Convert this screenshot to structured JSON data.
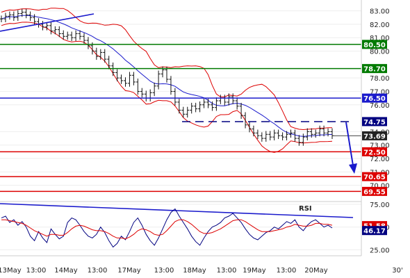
{
  "chart_data": [
    {
      "type": "line",
      "panel": "price",
      "ylim": [
        69.0,
        83.6
      ],
      "y_ticks": [
        "83.00",
        "82.00",
        "81.00",
        "80.00",
        "78.00",
        "77.00",
        "76.00",
        "74.00",
        "73.00",
        "72.00",
        "71.00",
        "70.00"
      ],
      "series": [
        {
          "kind": "ohlc-close",
          "values": [
            82.4,
            82.6,
            82.7,
            82.5,
            82.8,
            82.9,
            82.7,
            82.5,
            82.2,
            82.0,
            81.8,
            81.9,
            81.5,
            81.6,
            81.3,
            81.1,
            81.2,
            81.0,
            81.3,
            81.1,
            80.8,
            80.4,
            80.0,
            79.6,
            79.9,
            79.4,
            78.9,
            78.4,
            78.0,
            77.8,
            77.6,
            78.2,
            77.7,
            77.0,
            76.8,
            76.5,
            76.9,
            77.4,
            78.3,
            78.6,
            77.9,
            77.0,
            76.2,
            75.6,
            75.3,
            75.6,
            75.9,
            75.7,
            76.0,
            76.2,
            76.0,
            75.8,
            76.3,
            76.5,
            76.2,
            76.6,
            76.3,
            75.9,
            75.2,
            74.5,
            74.2,
            73.9,
            73.7,
            73.5,
            73.8,
            73.6,
            73.9,
            73.7,
            73.6,
            73.8,
            73.9,
            73.5,
            73.2,
            73.6,
            74.0,
            73.8,
            73.9,
            74.2,
            73.9,
            74.0,
            73.7
          ]
        }
      ],
      "levels": [
        {
          "value": 80.5,
          "label": "80.50",
          "color": "#007a00"
        },
        {
          "value": 78.7,
          "label": "78.70",
          "color": "#007a00"
        },
        {
          "value": 76.5,
          "label": "76.50",
          "color": "#1a1acc"
        },
        {
          "value": 74.75,
          "label": "74.75",
          "color": "#000080",
          "style": "dashed"
        },
        {
          "value": 73.69,
          "label": "73.69",
          "color": "#222222",
          "kind": "last-price"
        },
        {
          "value": 72.5,
          "label": "72.50",
          "color": "#dd0000"
        },
        {
          "value": 70.65,
          "label": "70.65",
          "color": "#dd0000"
        },
        {
          "value": 69.55,
          "label": "69.55",
          "color": "#dd0000"
        }
      ]
    },
    {
      "type": "line",
      "panel": "indicator",
      "title": "RSI",
      "ylim": [
        20,
        78
      ],
      "y_ticks": [
        "75.00",
        "50.00",
        "25.00"
      ],
      "series": [
        {
          "kind": "rsi",
          "values": [
            60,
            62,
            55,
            58,
            52,
            56,
            50,
            40,
            35,
            45,
            38,
            33,
            48,
            42,
            37,
            40,
            55,
            60,
            58,
            52,
            45,
            40,
            38,
            42,
            50,
            44,
            35,
            28,
            32,
            40,
            36,
            45,
            55,
            60,
            52,
            42,
            35,
            30,
            38,
            48,
            58,
            66,
            70,
            62,
            55,
            48,
            40,
            34,
            30,
            38,
            45,
            50,
            52,
            55,
            60,
            62,
            65,
            60,
            55,
            48,
            42,
            38,
            36,
            40,
            44,
            46,
            50,
            48,
            52,
            56,
            54,
            58,
            50,
            46,
            52,
            56,
            58,
            54,
            50,
            52,
            49
          ]
        },
        {
          "kind": "rsi-average",
          "values": [
            58,
            58,
            57,
            56,
            55,
            54,
            52,
            49,
            46,
            44,
            42,
            40,
            42,
            42,
            41,
            41,
            44,
            48,
            51,
            52,
            51,
            49,
            47,
            46,
            46,
            45,
            43,
            40,
            38,
            38,
            37,
            39,
            42,
            46,
            48,
            47,
            45,
            42,
            41,
            42,
            46,
            51,
            56,
            58,
            58,
            56,
            53,
            49,
            45,
            43,
            43,
            44,
            46,
            48,
            51,
            54,
            57,
            58,
            58,
            56,
            53,
            50,
            47,
            45,
            45,
            45,
            46,
            47,
            48,
            50,
            51,
            53,
            52,
            51,
            51,
            52,
            54,
            54,
            53,
            53,
            52
          ]
        }
      ],
      "levels": [
        {
          "value": 51.58,
          "label": "51.58",
          "color": "#dd0000"
        },
        {
          "value": 46.17,
          "label": "46.17",
          "color": "#000080"
        }
      ]
    }
  ],
  "x_labels": [
    "13May",
    "13:00",
    "14May",
    "13:00",
    "17May",
    "13:00",
    "18May",
    "13:00",
    "19May",
    "13:00",
    "20May"
  ],
  "x_axis_unit": "30'"
}
